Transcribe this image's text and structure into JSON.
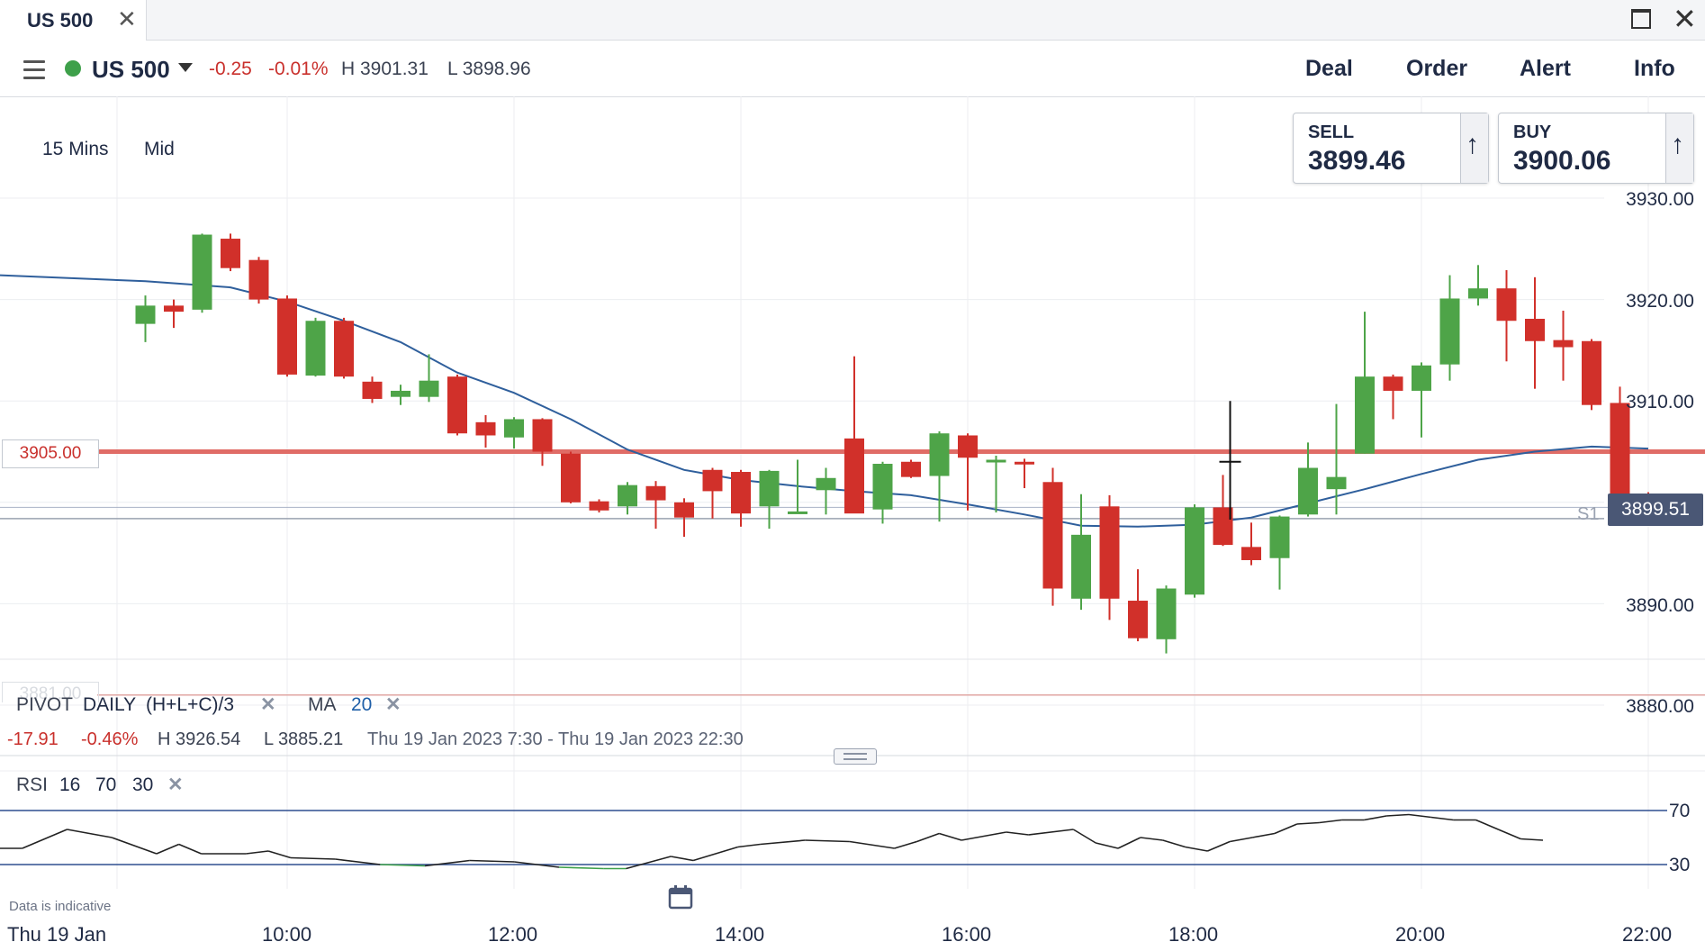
{
  "tab": {
    "title": "US 500"
  },
  "header": {
    "instrument": "US 500",
    "change": "-0.25",
    "change_pct": "-0.01%",
    "high": "H 3901.31",
    "low": "L 3898.96",
    "buttons": [
      "Deal",
      "Order",
      "Alert",
      "Info"
    ]
  },
  "chart_options": {
    "interval": "15 Mins",
    "price_type": "Mid"
  },
  "tickets": {
    "sell": {
      "label": "SELL",
      "price": "3899.46"
    },
    "buy": {
      "label": "BUY",
      "price": "3900.06"
    }
  },
  "current_price_label": "3899.51",
  "level_label": "3905.00",
  "ghost_level_label": "3881.00",
  "pivot_label": "S1",
  "indicators": {
    "pivot": {
      "name": "PIVOT",
      "period": "DAILY",
      "formula": "(H+L+C)/3"
    },
    "ma": {
      "name": "MA",
      "period": "20"
    },
    "rsi": {
      "name": "RSI",
      "period": "16",
      "upper": "70",
      "lower": "30"
    }
  },
  "summary": {
    "change": "-17.91",
    "change_pct": "-0.46%",
    "high": "H 3926.54",
    "low": "L 3885.21",
    "range": "Thu 19 Jan 2023 7:30 - Thu 19 Jan 2023 22:30"
  },
  "footer": {
    "disclaimer": "Data is indicative",
    "date": "Thu 19 Jan"
  },
  "colors": {
    "up": "#4ea448",
    "down": "#d1302a",
    "ma": "#2f5f9c",
    "level": "#e06c66",
    "rsi": "#222222",
    "rsi_oversold": "#3ea04a"
  },
  "chart_data": {
    "type": "candlestick",
    "interval_minutes": 15,
    "ylim": [
      3875,
      3935
    ],
    "y_ticks": [
      3930,
      3920,
      3910,
      3890,
      3880
    ],
    "y_tick_labels": [
      "3930.00",
      "3920.00",
      "3910.00",
      "3890.00",
      "3880.00"
    ],
    "x_tick_labels": [
      "10:00",
      "12:00",
      "14:00",
      "16:00",
      "18:00",
      "20:00",
      "22:00"
    ],
    "levels": {
      "horizontal_line": 3905.0,
      "pivot_s1": 3898.4,
      "current": 3899.51,
      "low_line": 3881.0
    },
    "candles": [
      {
        "t": "08:45",
        "o": 3917.6,
        "h": 3920.4,
        "l": 3915.8,
        "c": 3919.4
      },
      {
        "t": "09:00",
        "o": 3919.4,
        "h": 3920.0,
        "l": 3917.2,
        "c": 3918.8
      },
      {
        "t": "09:15",
        "o": 3919.0,
        "h": 3926.5,
        "l": 3918.7,
        "c": 3926.4
      },
      {
        "t": "09:30",
        "o": 3926.0,
        "h": 3926.5,
        "l": 3922.8,
        "c": 3923.1
      },
      {
        "t": "09:45",
        "o": 3923.9,
        "h": 3924.2,
        "l": 3919.6,
        "c": 3920.0
      },
      {
        "t": "10:00",
        "o": 3920.1,
        "h": 3920.4,
        "l": 3912.4,
        "c": 3912.6
      },
      {
        "t": "10:15",
        "o": 3912.5,
        "h": 3918.2,
        "l": 3912.4,
        "c": 3917.9
      },
      {
        "t": "10:30",
        "o": 3917.9,
        "h": 3918.2,
        "l": 3912.2,
        "c": 3912.4
      },
      {
        "t": "10:45",
        "o": 3911.9,
        "h": 3912.4,
        "l": 3909.8,
        "c": 3910.2
      },
      {
        "t": "11:00",
        "o": 3910.4,
        "h": 3911.6,
        "l": 3909.6,
        "c": 3911.0
      },
      {
        "t": "11:15",
        "o": 3910.4,
        "h": 3914.6,
        "l": 3909.9,
        "c": 3912.0
      },
      {
        "t": "11:30",
        "o": 3912.4,
        "h": 3912.6,
        "l": 3906.6,
        "c": 3906.8
      },
      {
        "t": "11:45",
        "o": 3907.9,
        "h": 3908.6,
        "l": 3905.4,
        "c": 3906.6
      },
      {
        "t": "12:00",
        "o": 3906.4,
        "h": 3908.4,
        "l": 3905.3,
        "c": 3908.2
      },
      {
        "t": "12:15",
        "o": 3908.2,
        "h": 3908.3,
        "l": 3903.6,
        "c": 3905.0
      },
      {
        "t": "12:30",
        "o": 3904.8,
        "h": 3905.0,
        "l": 3899.9,
        "c": 3900.0
      },
      {
        "t": "12:45",
        "o": 3900.1,
        "h": 3900.3,
        "l": 3899.0,
        "c": 3899.2
      },
      {
        "t": "13:00",
        "o": 3899.6,
        "h": 3902.0,
        "l": 3898.8,
        "c": 3901.7
      },
      {
        "t": "13:15",
        "o": 3901.6,
        "h": 3902.1,
        "l": 3897.4,
        "c": 3900.2
      },
      {
        "t": "13:30",
        "o": 3900.0,
        "h": 3900.4,
        "l": 3896.6,
        "c": 3898.5
      },
      {
        "t": "13:45",
        "o": 3903.2,
        "h": 3903.4,
        "l": 3898.4,
        "c": 3901.1
      },
      {
        "t": "14:00",
        "o": 3903.0,
        "h": 3903.2,
        "l": 3897.6,
        "c": 3898.9
      },
      {
        "t": "14:15",
        "o": 3899.6,
        "h": 3903.2,
        "l": 3897.4,
        "c": 3903.1
      },
      {
        "t": "14:30",
        "o": 3898.9,
        "h": 3904.2,
        "l": 3899.0,
        "c": 3899.1
      },
      {
        "t": "14:45",
        "o": 3901.2,
        "h": 3903.4,
        "l": 3898.8,
        "c": 3902.4
      },
      {
        "t": "15:00",
        "o": 3906.3,
        "h": 3914.4,
        "l": 3899.3,
        "c": 3898.9
      },
      {
        "t": "15:15",
        "o": 3899.3,
        "h": 3904.0,
        "l": 3897.9,
        "c": 3903.8
      },
      {
        "t": "15:30",
        "o": 3904.0,
        "h": 3904.2,
        "l": 3902.4,
        "c": 3902.5
      },
      {
        "t": "15:45",
        "o": 3902.6,
        "h": 3907.0,
        "l": 3898.1,
        "c": 3906.8
      },
      {
        "t": "16:00",
        "o": 3906.6,
        "h": 3906.8,
        "l": 3899.2,
        "c": 3904.4
      },
      {
        "t": "16:15",
        "o": 3904.1,
        "h": 3904.6,
        "l": 3899.0,
        "c": 3904.2
      },
      {
        "t": "16:30",
        "o": 3904.0,
        "h": 3904.3,
        "l": 3901.4,
        "c": 3903.8
      },
      {
        "t": "16:45",
        "o": 3902.0,
        "h": 3903.4,
        "l": 3889.8,
        "c": 3891.5
      },
      {
        "t": "17:00",
        "o": 3890.5,
        "h": 3900.8,
        "l": 3889.4,
        "c": 3896.8
      },
      {
        "t": "17:15",
        "o": 3899.6,
        "h": 3900.7,
        "l": 3888.4,
        "c": 3890.5
      },
      {
        "t": "17:30",
        "o": 3890.3,
        "h": 3893.4,
        "l": 3886.3,
        "c": 3886.6
      },
      {
        "t": "17:45",
        "o": 3886.5,
        "h": 3891.8,
        "l": 3885.1,
        "c": 3891.5
      },
      {
        "t": "18:00",
        "o": 3890.9,
        "h": 3899.8,
        "l": 3890.6,
        "c": 3899.5
      },
      {
        "t": "18:15",
        "o": 3899.5,
        "h": 3902.7,
        "l": 3895.7,
        "c": 3895.8
      },
      {
        "t": "18:30",
        "o": 3895.6,
        "h": 3898.0,
        "l": 3893.8,
        "c": 3894.3
      },
      {
        "t": "18:45",
        "o": 3894.5,
        "h": 3898.7,
        "l": 3891.4,
        "c": 3898.6
      },
      {
        "t": "19:00",
        "o": 3898.8,
        "h": 3905.9,
        "l": 3898.6,
        "c": 3903.4
      },
      {
        "t": "19:15",
        "o": 3901.3,
        "h": 3909.7,
        "l": 3898.8,
        "c": 3902.5
      },
      {
        "t": "19:30",
        "o": 3904.8,
        "h": 3918.8,
        "l": 3904.8,
        "c": 3912.4
      },
      {
        "t": "19:45",
        "o": 3912.4,
        "h": 3912.6,
        "l": 3908.2,
        "c": 3911.0
      },
      {
        "t": "20:00",
        "o": 3911.0,
        "h": 3913.8,
        "l": 3906.4,
        "c": 3913.5
      },
      {
        "t": "20:15",
        "o": 3913.6,
        "h": 3922.4,
        "l": 3912.0,
        "c": 3920.1
      },
      {
        "t": "20:30",
        "o": 3920.1,
        "h": 3923.4,
        "l": 3919.4,
        "c": 3921.1
      },
      {
        "t": "20:45",
        "o": 3921.1,
        "h": 3922.9,
        "l": 3913.9,
        "c": 3917.9
      },
      {
        "t": "21:00",
        "o": 3918.1,
        "h": 3922.2,
        "l": 3911.2,
        "c": 3915.9
      },
      {
        "t": "21:15",
        "o": 3916.0,
        "h": 3918.9,
        "l": 3912.0,
        "c": 3915.3
      },
      {
        "t": "21:30",
        "o": 3915.9,
        "h": 3916.1,
        "l": 3909.1,
        "c": 3909.6
      },
      {
        "t": "21:45",
        "o": 3909.8,
        "h": 3911.4,
        "l": 3898.0,
        "c": 3900.4
      },
      {
        "t": "22:00",
        "o": 3900.5,
        "h": 3901.0,
        "l": 3899.6,
        "c": 3899.9
      }
    ],
    "ma20": [
      {
        "t": "08:45",
        "v": 3921.8
      },
      {
        "t": "09:30",
        "v": 3921.2
      },
      {
        "t": "10:00",
        "v": 3919.8
      },
      {
        "t": "10:30",
        "v": 3917.9
      },
      {
        "t": "11:00",
        "v": 3915.8
      },
      {
        "t": "11:30",
        "v": 3912.8
      },
      {
        "t": "12:00",
        "v": 3910.8
      },
      {
        "t": "12:30",
        "v": 3908.2
      },
      {
        "t": "13:00",
        "v": 3905.2
      },
      {
        "t": "13:30",
        "v": 3903.2
      },
      {
        "t": "14:00",
        "v": 3902.2
      },
      {
        "t": "14:30",
        "v": 3901.6
      },
      {
        "t": "15:00",
        "v": 3901.1
      },
      {
        "t": "15:30",
        "v": 3900.7
      },
      {
        "t": "16:00",
        "v": 3899.8
      },
      {
        "t": "16:30",
        "v": 3898.8
      },
      {
        "t": "17:00",
        "v": 3897.7
      },
      {
        "t": "17:30",
        "v": 3897.6
      },
      {
        "t": "18:00",
        "v": 3897.8
      },
      {
        "t": "18:30",
        "v": 3898.5
      },
      {
        "t": "19:00",
        "v": 3899.9
      },
      {
        "t": "19:30",
        "v": 3901.3
      },
      {
        "t": "20:00",
        "v": 3902.8
      },
      {
        "t": "20:30",
        "v": 3904.2
      },
      {
        "t": "21:00",
        "v": 3905.0
      },
      {
        "t": "21:30",
        "v": 3905.5
      },
      {
        "t": "22:00",
        "v": 3905.3
      }
    ],
    "rsi": {
      "upper": 70,
      "lower": 30,
      "points": [
        {
          "t": "08:30",
          "v": 42
        },
        {
          "t": "08:45",
          "v": 42
        },
        {
          "t": "09:15",
          "v": 56
        },
        {
          "t": "09:45",
          "v": 50
        },
        {
          "t": "10:15",
          "v": 38
        },
        {
          "t": "10:30",
          "v": 45
        },
        {
          "t": "10:45",
          "v": 38
        },
        {
          "t": "11:15",
          "v": 38
        },
        {
          "t": "11:30",
          "v": 40
        },
        {
          "t": "11:45",
          "v": 35
        },
        {
          "t": "12:15",
          "v": 34
        },
        {
          "t": "12:45",
          "v": 30
        },
        {
          "t": "13:15",
          "v": 29
        },
        {
          "t": "13:45",
          "v": 33
        },
        {
          "t": "14:15",
          "v": 32
        },
        {
          "t": "14:45",
          "v": 28
        },
        {
          "t": "15:15",
          "v": 27
        },
        {
          "t": "15:30",
          "v": 27
        },
        {
          "t": "16:00",
          "v": 36
        },
        {
          "t": "16:15",
          "v": 33
        },
        {
          "t": "16:45",
          "v": 43
        },
        {
          "t": "17:00",
          "v": 45
        },
        {
          "t": "17:30",
          "v": 48
        },
        {
          "t": "18:00",
          "v": 47
        },
        {
          "t": "18:30",
          "v": 42
        },
        {
          "t": "18:45",
          "v": 47
        },
        {
          "t": "19:00",
          "v": 53
        },
        {
          "t": "19:15",
          "v": 48
        },
        {
          "t": "19:45",
          "v": 54
        },
        {
          "t": "20:00",
          "v": 52
        },
        {
          "t": "20:30",
          "v": 56
        },
        {
          "t": "20:45",
          "v": 46
        },
        {
          "t": "21:00",
          "v": 42
        },
        {
          "t": "21:15",
          "v": 50
        },
        {
          "t": "21:30",
          "v": 48
        },
        {
          "t": "21:45",
          "v": 43
        },
        {
          "t": "22:00",
          "v": 40
        },
        {
          "t": "22:15",
          "v": 47
        },
        {
          "t": "22:30",
          "v": 50
        },
        {
          "t": "22:45",
          "v": 53
        },
        {
          "t": "23:00",
          "v": 60
        },
        {
          "t": "23:15",
          "v": 61
        },
        {
          "t": "23:30",
          "v": 63
        },
        {
          "t": "23:45",
          "v": 63
        },
        {
          "t": "24:00",
          "v": 66
        },
        {
          "t": "24:15",
          "v": 67
        },
        {
          "t": "24:30",
          "v": 65
        },
        {
          "t": "24:45",
          "v": 63
        },
        {
          "t": "25:00",
          "v": 63
        },
        {
          "t": "25:15",
          "v": 56
        },
        {
          "t": "25:30",
          "v": 49
        },
        {
          "t": "25:45",
          "v": 48
        }
      ]
    }
  }
}
